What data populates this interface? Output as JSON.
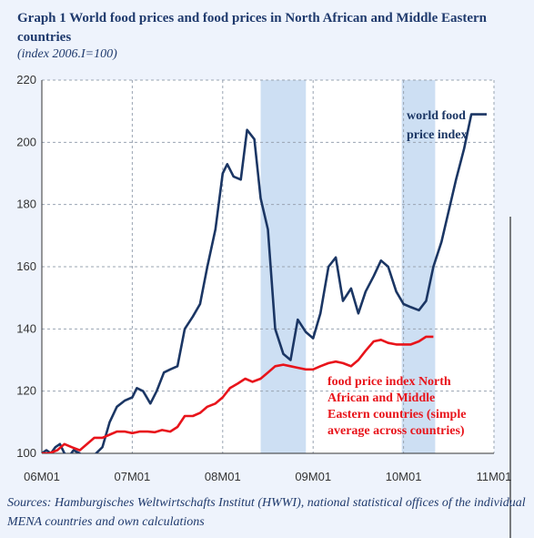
{
  "title": "Graph 1  World food prices and food prices in North African and Middle Eastern countries",
  "subtitle": "(index 2006.I=100)",
  "source": "Sources: Hamburgisches Weltwirtschafts Institut (HWWI), national statistical offices of the individual MENA countries and own calculations",
  "colors": {
    "world": "#1b3664",
    "mena": "#e8141b",
    "shade": "#c4d9f1",
    "grid": "#9aa4b2"
  },
  "chart_data": {
    "type": "line",
    "ylim": [
      100,
      220
    ],
    "yticks": [
      "100",
      "120",
      "140",
      "160",
      "180",
      "200",
      "220"
    ],
    "xlim": [
      2006.0,
      2011.0
    ],
    "xticks": [
      "06M01",
      "07M01",
      "08M01",
      "09M01",
      "10M01",
      "11M01"
    ],
    "shaded_periods": [
      [
        2008.42,
        2008.92
      ],
      [
        2009.98,
        2010.35
      ]
    ],
    "series": [
      {
        "name": "world food price index",
        "label_lines": [
          "world food",
          "price index"
        ],
        "x": [
          2006.0,
          2006.05,
          2006.1,
          2006.15,
          2006.2,
          2006.25,
          2006.3,
          2006.35,
          2006.42,
          2006.5,
          2006.55,
          2006.6,
          2006.67,
          2006.75,
          2006.83,
          2006.92,
          2007.0,
          2007.05,
          2007.12,
          2007.2,
          2007.27,
          2007.35,
          2007.42,
          2007.5,
          2007.58,
          2007.67,
          2007.75,
          2007.83,
          2007.92,
          2008.0,
          2008.05,
          2008.12,
          2008.2,
          2008.27,
          2008.35,
          2008.42,
          2008.5,
          2008.58,
          2008.67,
          2008.75,
          2008.83,
          2008.92,
          2009.0,
          2009.08,
          2009.17,
          2009.25,
          2009.33,
          2009.42,
          2009.5,
          2009.58,
          2009.67,
          2009.75,
          2009.83,
          2009.92,
          2010.0,
          2010.08,
          2010.17,
          2010.25,
          2010.33,
          2010.42,
          2010.5,
          2010.58,
          2010.67,
          2010.75,
          2010.83,
          2010.92
        ],
        "values": [
          100,
          101,
          100,
          102,
          103,
          100,
          99,
          101,
          100,
          96,
          97,
          100,
          102,
          110,
          115,
          117,
          118,
          121,
          120,
          116,
          120,
          126,
          127,
          128,
          140,
          144,
          148,
          160,
          172,
          190,
          193,
          189,
          188,
          204,
          201,
          182,
          172,
          140,
          132,
          130,
          143,
          139,
          137,
          145,
          160,
          163,
          149,
          153,
          145,
          152,
          157,
          162,
          160,
          152,
          148,
          147,
          146,
          149,
          160,
          168,
          178,
          188,
          198,
          209,
          209,
          209
        ]
      },
      {
        "name": "food price index North African and Middle Eastern countries (simple average across countries)",
        "label_lines": [
          "food price index North",
          "African and Middle",
          "Eastern countries (simple",
          "average across countries)"
        ],
        "x": [
          2006.0,
          2006.08,
          2006.17,
          2006.25,
          2006.33,
          2006.42,
          2006.5,
          2006.58,
          2006.67,
          2006.75,
          2006.83,
          2006.92,
          2007.0,
          2007.08,
          2007.17,
          2007.25,
          2007.33,
          2007.42,
          2007.5,
          2007.58,
          2007.67,
          2007.75,
          2007.83,
          2007.92,
          2008.0,
          2008.08,
          2008.17,
          2008.25,
          2008.33,
          2008.42,
          2008.5,
          2008.58,
          2008.67,
          2008.75,
          2008.83,
          2008.92,
          2009.0,
          2009.08,
          2009.17,
          2009.25,
          2009.33,
          2009.42,
          2009.5,
          2009.58,
          2009.67,
          2009.75,
          2009.83,
          2009.92,
          2010.0,
          2010.08,
          2010.17,
          2010.25,
          2010.33
        ],
        "values": [
          100,
          100,
          101,
          103,
          102,
          101,
          103,
          105,
          105,
          106,
          107,
          107,
          106.5,
          107,
          107,
          106.8,
          107.5,
          107,
          108.5,
          112,
          112,
          113,
          115,
          116,
          118,
          121,
          122.5,
          124,
          123,
          124,
          126,
          128,
          128.5,
          128,
          127.5,
          127,
          127,
          128,
          129,
          129.5,
          129,
          128,
          130,
          133,
          136,
          136.5,
          135.5,
          135,
          135,
          135,
          136,
          137.5,
          137.5
        ]
      }
    ]
  }
}
